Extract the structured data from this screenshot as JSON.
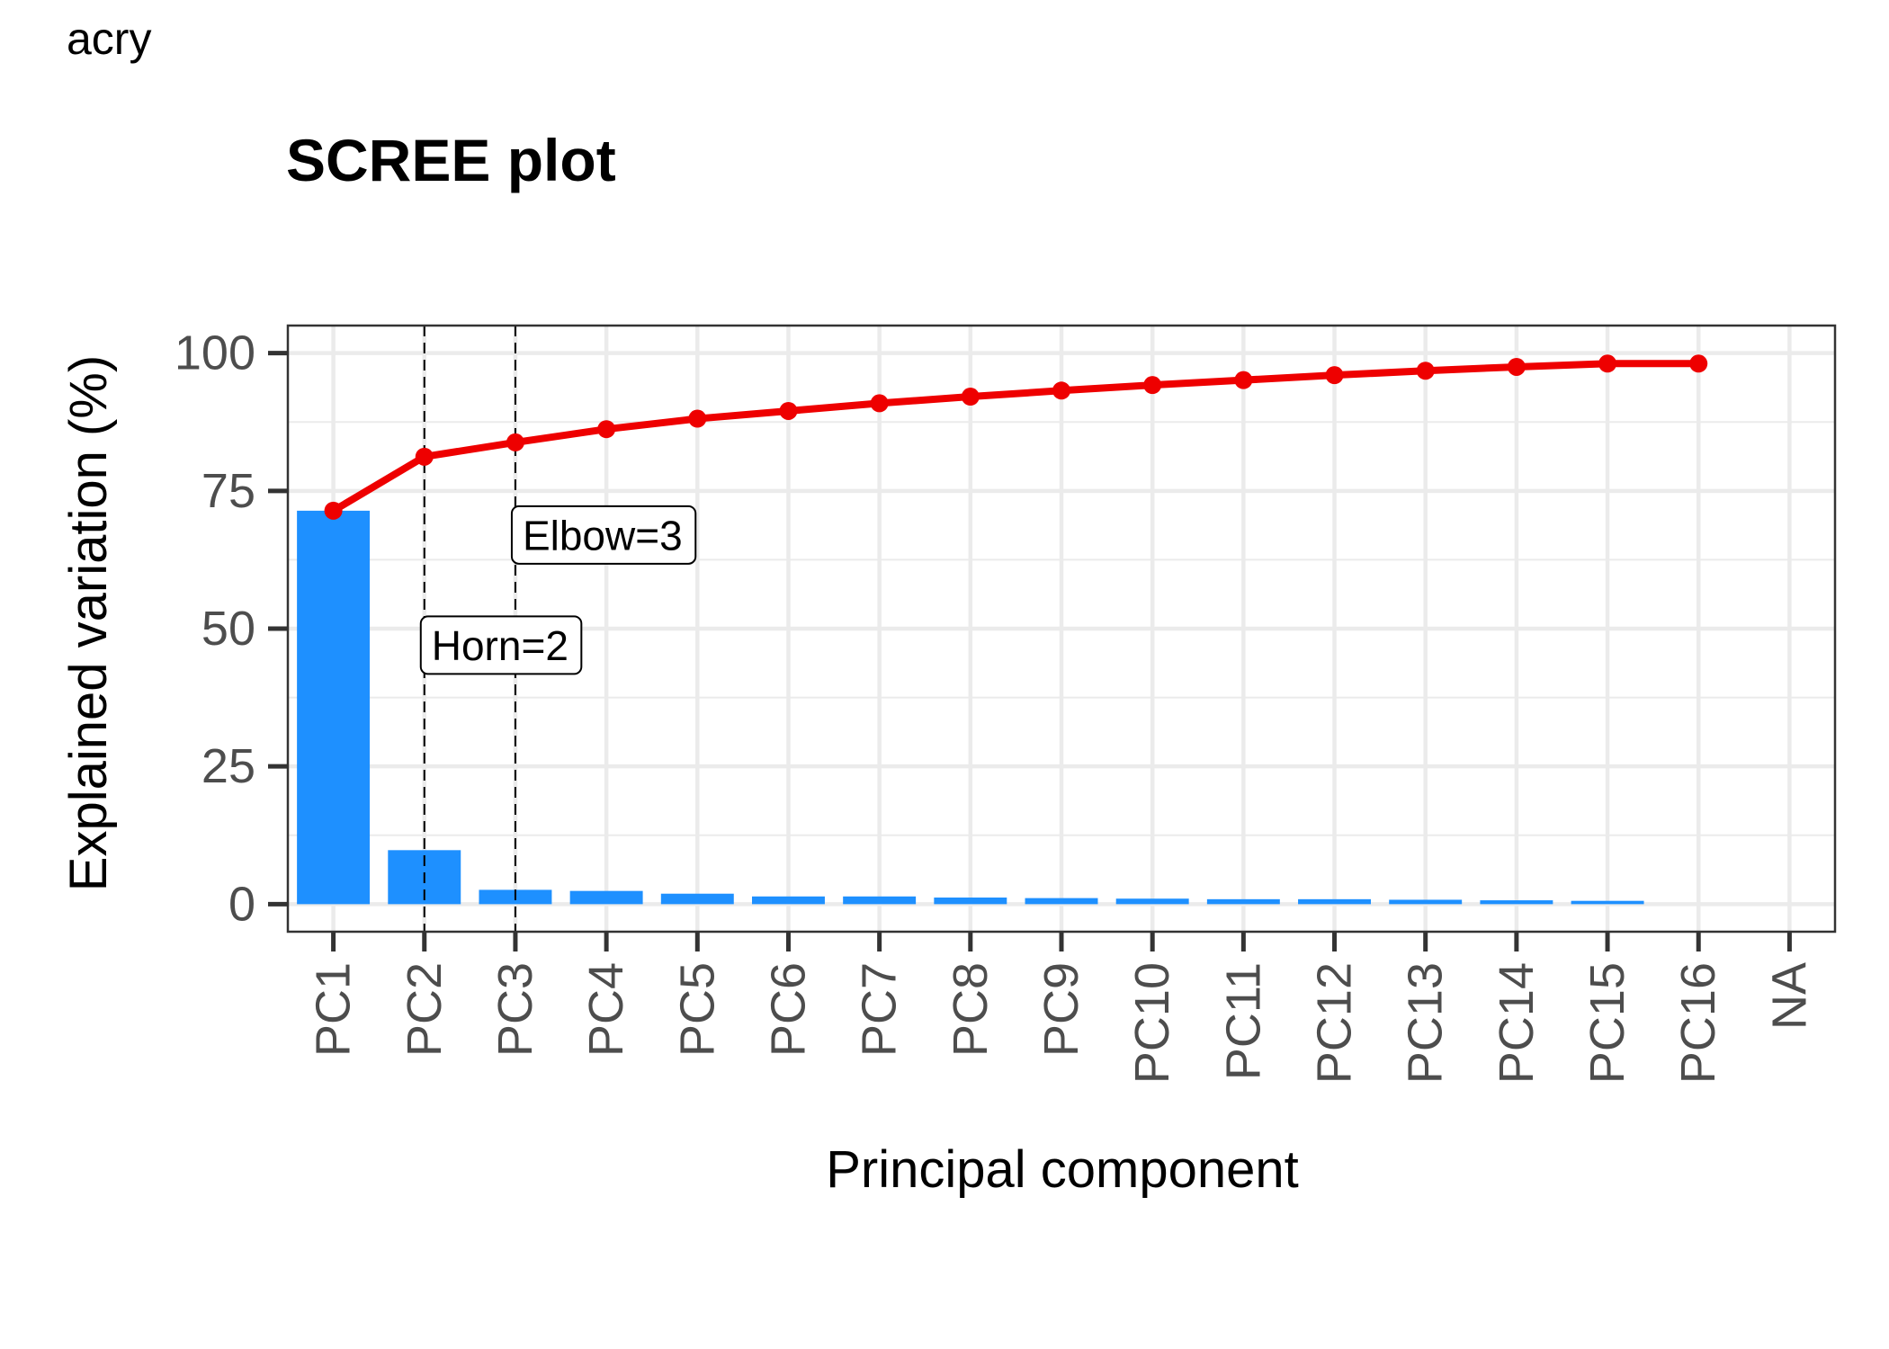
{
  "header": {
    "tag": "acry"
  },
  "chart_data": {
    "type": "bar",
    "title": "SCREE plot",
    "xlabel": "Principal component",
    "ylabel": "Explained variation (%)",
    "ylim": [
      -5,
      105
    ],
    "yticks": [
      0,
      25,
      50,
      75,
      100
    ],
    "categories": [
      "PC1",
      "PC2",
      "PC3",
      "PC4",
      "PC5",
      "PC6",
      "PC7",
      "PC8",
      "PC9",
      "PC10",
      "PC11",
      "PC12",
      "PC13",
      "PC14",
      "PC15",
      "PC16",
      "NA"
    ],
    "series": [
      {
        "type": "bar",
        "color": "#1E90FF",
        "values": [
          71.4,
          9.8,
          2.6,
          2.4,
          1.9,
          1.4,
          1.4,
          1.2,
          1.1,
          1.0,
          0.9,
          0.9,
          0.8,
          0.7,
          0.6,
          0.0,
          null
        ]
      },
      {
        "type": "line",
        "color": "#EE0000",
        "values": [
          71.4,
          81.2,
          83.8,
          86.2,
          88.1,
          89.5,
          90.9,
          92.1,
          93.2,
          94.2,
          95.1,
          96.0,
          96.8,
          97.5,
          98.1,
          98.1,
          null
        ]
      }
    ],
    "vlines": [
      {
        "category": "PC2",
        "label": "Horn=2",
        "label_y": 47
      },
      {
        "category": "PC3",
        "label": "Elbow=3",
        "label_y": 67
      }
    ],
    "grid": true,
    "legend": "none"
  }
}
